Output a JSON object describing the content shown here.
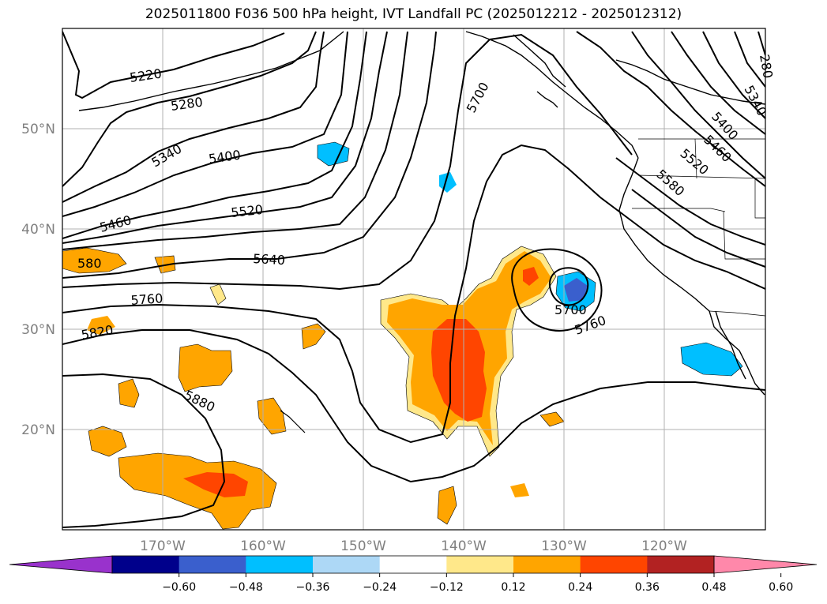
{
  "title": "2025011800 F036 500 hPa height, IVT Landfall PC (2025012212 - 2025012312)",
  "map": {
    "extent": {
      "lon": [
        -180,
        -110
      ],
      "lat": [
        10,
        60
      ]
    },
    "lon_ticks": [
      "170°W",
      "160°W",
      "150°W",
      "140°W",
      "130°W",
      "120°W"
    ],
    "lat_ticks": [
      "50°N",
      "40°N",
      "30°N",
      "20°N"
    ],
    "grid": true,
    "contour_labels": [
      "5220",
      "5280",
      "5340",
      "5400",
      "5460",
      "5520",
      "5580",
      "5640",
      "5700",
      "5760",
      "5820",
      "5880",
      "5700",
      "5760",
      "5340",
      "5400",
      "5460",
      "5520",
      "5580",
      "5700",
      "580",
      "280"
    ]
  },
  "colorbar": {
    "ticks": [
      "−0.60",
      "−0.48",
      "−0.36",
      "−0.24",
      "−0.12",
      "0.12",
      "0.24",
      "0.36",
      "0.48",
      "0.60"
    ],
    "colors": [
      "#9932cc",
      "#00008b",
      "#3a5fcd",
      "#00bfff",
      "#add8f6",
      "#ffffff",
      "#ffe88a",
      "#ffa500",
      "#ff4500",
      "#b22222",
      "#ff88aa"
    ],
    "extend": "both"
  },
  "shading_colors": {
    "pos1": "#ffe88a",
    "pos2": "#ffa500",
    "pos3": "#ff4500",
    "neg1": "#add8f6",
    "neg2": "#00bfff",
    "neg3": "#3a5fcd"
  }
}
